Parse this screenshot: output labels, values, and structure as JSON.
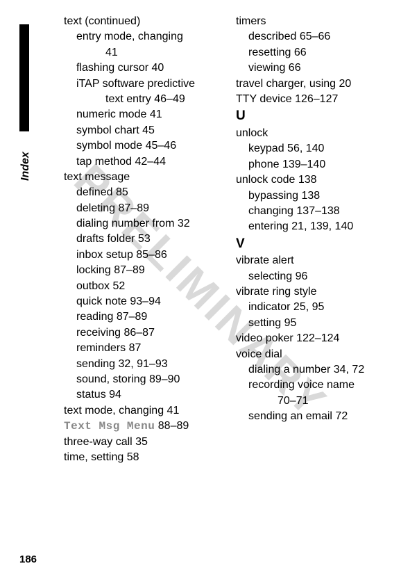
{
  "watermark_text": "PRELIMINARY",
  "index_label": "Index",
  "page_number": "186",
  "left_column": [
    {
      "text": "text (continued)",
      "class": "entry l1"
    },
    {
      "text": "entry mode, changing",
      "class": "entry l2"
    },
    {
      "text": "41",
      "class": "entry l2cont"
    },
    {
      "text": "flashing cursor  40",
      "class": "entry l2"
    },
    {
      "text": "iTAP software predictive",
      "class": "entry l2"
    },
    {
      "text": "text entry  46–49",
      "class": "entry l2cont"
    },
    {
      "text": "numeric mode  41",
      "class": "entry l2"
    },
    {
      "text": "symbol chart  45",
      "class": "entry l2"
    },
    {
      "text": "symbol mode  45–46",
      "class": "entry l2"
    },
    {
      "text": "tap method  42–44",
      "class": "entry l2"
    },
    {
      "text": "text message",
      "class": "entry l1"
    },
    {
      "text": "defined  85",
      "class": "entry l2"
    },
    {
      "text": "deleting  87–89",
      "class": "entry l2"
    },
    {
      "text": "dialing number from  32",
      "class": "entry l2"
    },
    {
      "text": "drafts folder  53",
      "class": "entry l2"
    },
    {
      "text": "inbox setup  85–86",
      "class": "entry l2"
    },
    {
      "text": "locking  87–89",
      "class": "entry l2"
    },
    {
      "text": "outbox  52",
      "class": "entry l2"
    },
    {
      "text": "quick note  93–94",
      "class": "entry l2"
    },
    {
      "text": "reading  87–89",
      "class": "entry l2"
    },
    {
      "text": "receiving  86–87",
      "class": "entry l2"
    },
    {
      "text": "reminders  87",
      "class": "entry l2"
    },
    {
      "text": "sending  32, 91–93",
      "class": "entry l2"
    },
    {
      "text": "sound, storing  89–90",
      "class": "entry l2"
    },
    {
      "text": "status  94",
      "class": "entry l2"
    },
    {
      "text": "text mode, changing  41",
      "class": "entry l1"
    },
    {
      "code_prefix": "Text Msg Menu",
      "text_suffix": "  88–89",
      "class": "entry l1",
      "mixed": true
    },
    {
      "text": "three-way call  35",
      "class": "entry l1"
    },
    {
      "text": "time, setting  58",
      "class": "entry l1"
    }
  ],
  "right_column": [
    {
      "text": "timers",
      "class": "entry l1"
    },
    {
      "text": "described  65–66",
      "class": "entry l2"
    },
    {
      "text": "resetting  66",
      "class": "entry l2"
    },
    {
      "text": "viewing  66",
      "class": "entry l2"
    },
    {
      "text": "travel charger, using  20",
      "class": "entry l1"
    },
    {
      "text": "TTY device  126–127",
      "class": "entry l1"
    },
    {
      "text": "U",
      "class": "section-header"
    },
    {
      "text": "unlock",
      "class": "entry l1"
    },
    {
      "text": "keypad  56, 140",
      "class": "entry l2"
    },
    {
      "text": "phone  139–140",
      "class": "entry l2"
    },
    {
      "text": "unlock code  138",
      "class": "entry l1"
    },
    {
      "text": "bypassing  138",
      "class": "entry l2"
    },
    {
      "text": "changing  137–138",
      "class": "entry l2"
    },
    {
      "text": "entering  21, 139, 140",
      "class": "entry l2"
    },
    {
      "text": "V",
      "class": "section-header"
    },
    {
      "text": "vibrate alert",
      "class": "entry l1"
    },
    {
      "text": "selecting  96",
      "class": "entry l2"
    },
    {
      "text": "vibrate ring style",
      "class": "entry l1"
    },
    {
      "text": "indicator  25, 95",
      "class": "entry l2"
    },
    {
      "text": "setting  95",
      "class": "entry l2"
    },
    {
      "text": "video poker  122–124",
      "class": "entry l1"
    },
    {
      "text": "voice dial",
      "class": "entry l1"
    },
    {
      "text": "dialing a number  34, 72",
      "class": "entry l2"
    },
    {
      "text": "recording voice name",
      "class": "entry l2"
    },
    {
      "text": "70–71",
      "class": "entry l2cont"
    },
    {
      "text": "sending an email  72",
      "class": "entry l2"
    }
  ]
}
